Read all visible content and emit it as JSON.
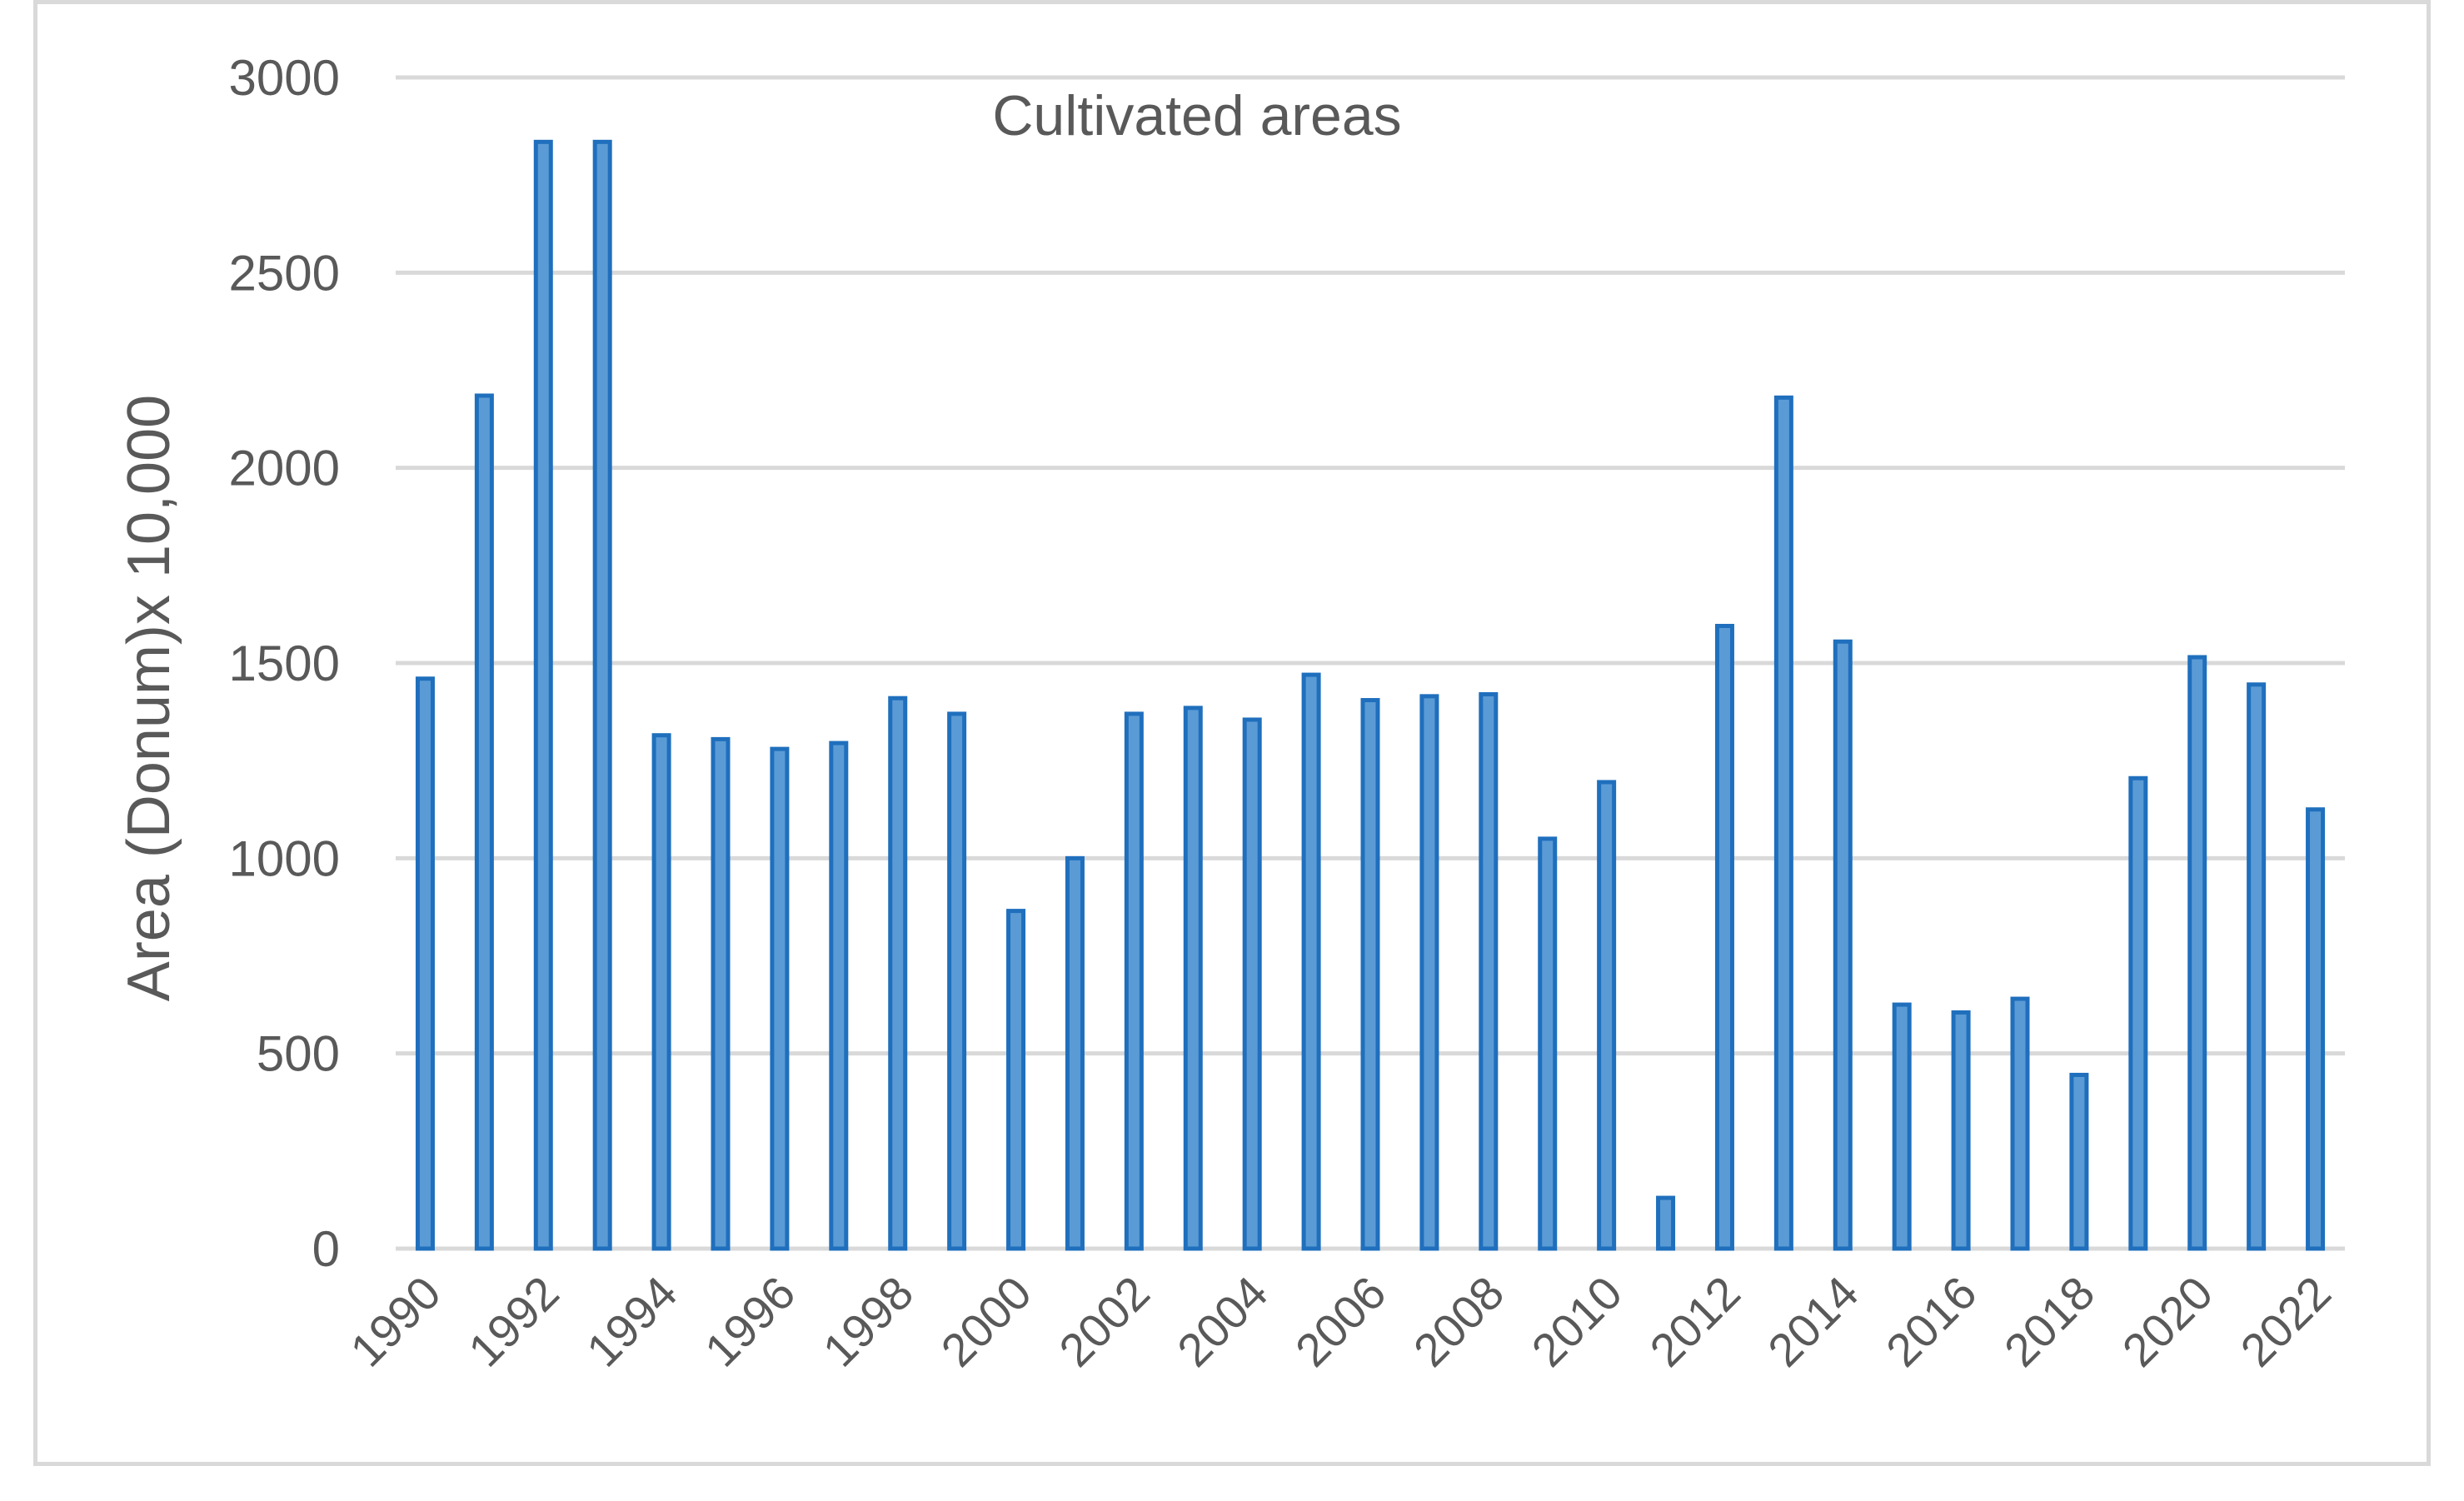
{
  "chart_data": {
    "type": "bar",
    "title": "Cultivated areas",
    "xlabel": "",
    "ylabel": "Area (Donum)x 10,000",
    "ylim": [
      0,
      3000
    ],
    "yticks": [
      0,
      500,
      1000,
      1500,
      2000,
      2500,
      3000
    ],
    "grid": true,
    "legend": "none",
    "categories": [
      "1990",
      "1991",
      "1992",
      "1993",
      "1994",
      "1995",
      "1996",
      "1997",
      "1998",
      "1999",
      "2000",
      "2001",
      "2002",
      "2003",
      "2004",
      "2005",
      "2006",
      "2007",
      "2008",
      "2009",
      "2010",
      "2011",
      "2012",
      "2013",
      "2014",
      "2015",
      "2016",
      "2017",
      "2018",
      "2019",
      "2020",
      "2021",
      "2022"
    ],
    "tick_labels": [
      "1990",
      "1992",
      "1994",
      "1996",
      "1998",
      "2000",
      "2002",
      "2004",
      "2006",
      "2008",
      "2010",
      "2012",
      "2014",
      "2016",
      "2018",
      "2020",
      "2022"
    ],
    "values": [
      1460,
      2185,
      2835,
      2835,
      1315,
      1305,
      1280,
      1295,
      1410,
      1370,
      865,
      1000,
      1370,
      1385,
      1355,
      1470,
      1405,
      1415,
      1420,
      1050,
      1195,
      130,
      1595,
      2180,
      1555,
      625,
      605,
      640,
      445,
      1205,
      1515,
      1445,
      1125
    ],
    "colors": {
      "bar_fill": "#5b9bd5",
      "bar_stroke": "#1f6fbd",
      "grid": "#d9d9d9",
      "text": "#595959"
    }
  }
}
